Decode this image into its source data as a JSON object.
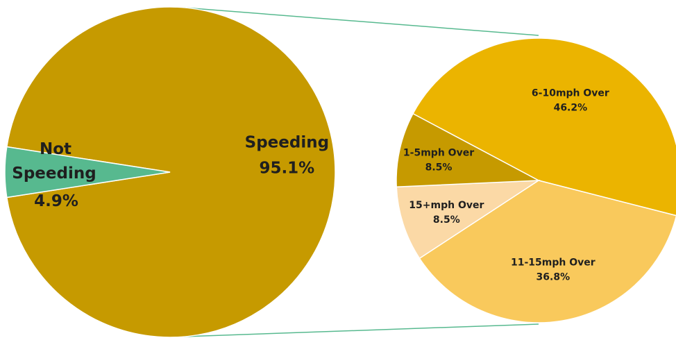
{
  "chart_data": [
    {
      "type": "pie",
      "slices": [
        {
          "label": "Not Speeding",
          "label_lines": [
            "Not",
            "Speeding"
          ],
          "percent_text": "4.9%",
          "value": 4.9,
          "color": "#57b98f"
        },
        {
          "label": "Speeding",
          "label_lines": [
            "Speeding"
          ],
          "percent_text": "95.1%",
          "value": 95.1,
          "color": "#c69a00"
        }
      ]
    },
    {
      "type": "pie",
      "breakdown_of": "Speeding",
      "slices": [
        {
          "label": "6-10mph Over",
          "percent_text": "46.2%",
          "value": 46.2,
          "color": "#ebb400"
        },
        {
          "label": "11-15mph Over",
          "percent_text": "36.8%",
          "value": 36.8,
          "color": "#f9c95c"
        },
        {
          "label": "15+mph Over",
          "percent_text": "8.5%",
          "value": 8.5,
          "color": "#fbd9a6"
        },
        {
          "label": "1-5mph Over",
          "percent_text": "8.5%",
          "value": 8.5,
          "color": "#c69a00"
        }
      ]
    }
  ],
  "connector_color": "#57b98f"
}
